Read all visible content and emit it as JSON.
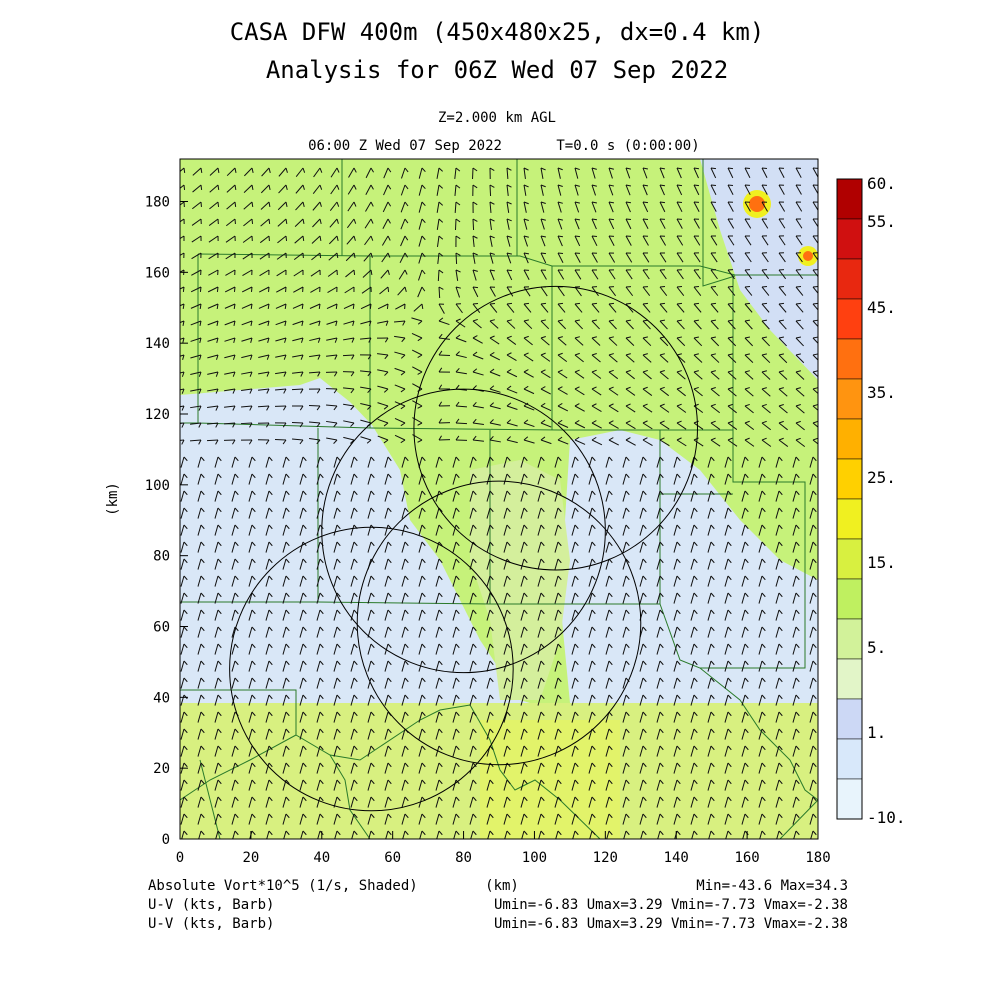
{
  "title_line1": "CASA DFW 400m (450x480x25, dx=0.4 km)",
  "title_line2": "Analysis for 06Z Wed 07 Sep 2022",
  "subtitle_level": "Z=2.000 km AGL",
  "subtitle_time": "06:00 Z Wed 07 Sep 2022",
  "subtitle_t": "T=0.0 s (0:00:00)",
  "footer": {
    "field_label": "Absolute Vort*10^5 (1/s, Shaded)",
    "xunit": "(km)",
    "minmax": "Min=-43.6 Max=34.3",
    "barb_label_1": "U-V (kts, Barb)",
    "barb_stats_1": "Umin=-6.83 Umax=3.29 Vmin=-7.73 Vmax=-2.38",
    "barb_label_2": "U-V (kts, Barb)",
    "barb_stats_2": "Umin=-6.83 Umax=3.29 Vmin=-7.73 Vmax=-2.38"
  },
  "chart_data": {
    "type": "heatmap",
    "title": "CASA DFW 400m (450x480x25, dx=0.4 km)",
    "xlabel": "",
    "ylabel": "(km)",
    "xlim": [
      0,
      180
    ],
    "ylim": [
      0,
      192
    ],
    "xticks": [
      0,
      20,
      40,
      60,
      80,
      100,
      120,
      140,
      160,
      180
    ],
    "yticks": [
      0,
      20,
      40,
      60,
      80,
      100,
      120,
      140,
      160,
      180
    ],
    "colorbar": {
      "labels": [
        "60.",
        "55.",
        "45.",
        "35.",
        "25.",
        "15.",
        "5.",
        "1.",
        "-10."
      ],
      "colors": [
        "#b00000",
        "#d01010",
        "#e82810",
        "#ff4010",
        "#ff7010",
        "#ff9410",
        "#ffb000",
        "#ffd000",
        "#f0f020",
        "#d8f040",
        "#bff060",
        "#d2f29a",
        "#e2f5c8",
        "#ccd8f5",
        "#d8e8fa",
        "#e8f4fc"
      ]
    },
    "radar_rings": [
      {
        "center": [
          106,
          116
        ],
        "radius": 40
      },
      {
        "center": [
          80,
          87
        ],
        "radius": 40
      },
      {
        "center": [
          90,
          61
        ],
        "radius": 40
      },
      {
        "center": [
          54,
          48
        ],
        "radius": 40
      }
    ],
    "vorticity_regions": [
      {
        "name": "upper-green",
        "value": 5,
        "color": "#c6f27a"
      },
      {
        "name": "middle-light-blue",
        "value": 1,
        "color": "#d9e7f7"
      },
      {
        "name": "lower-yellow-green",
        "value": 8,
        "color": "#d6f07a"
      },
      {
        "name": "maxima",
        "points": [
          [
            163,
            180,
            30
          ],
          [
            178,
            165,
            25
          ]
        ]
      }
    ],
    "wind_barbs": {
      "umin": -6.83,
      "umax": 3.29,
      "vmin": -7.73,
      "vmax": -2.38,
      "units": "kts"
    }
  }
}
